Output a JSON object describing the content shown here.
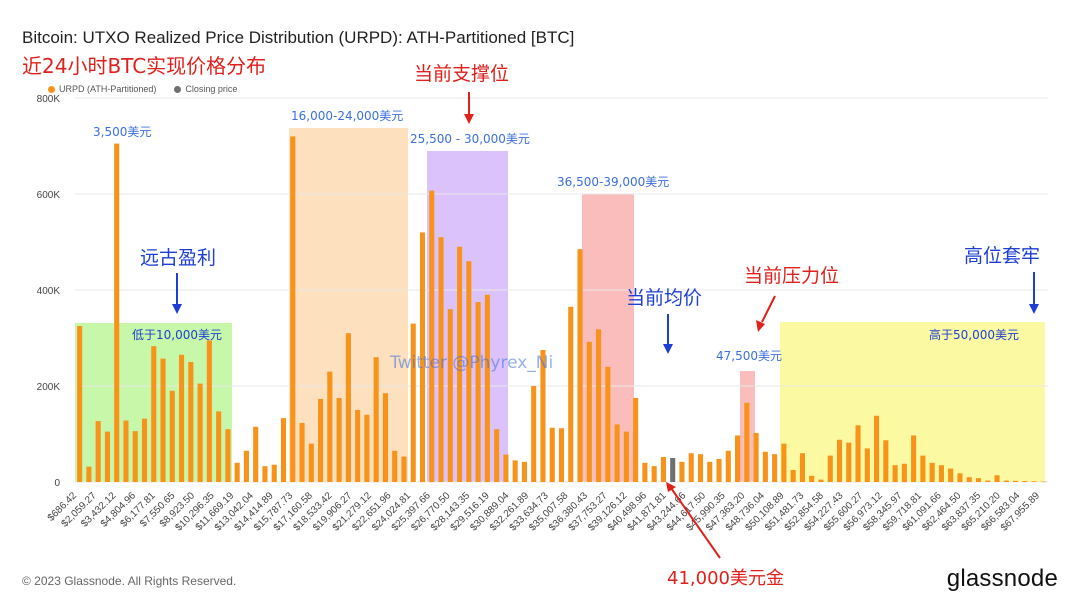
{
  "header": {
    "title": "Bitcoin: UTXO Realized Price Distribution (URPD): ATH-Partitioned [BTC]",
    "subtitle": "近24小时BTC实现价格分布"
  },
  "legend": {
    "series_label": "URPD (ATH-Partitioned)",
    "closing_label": "Closing price",
    "series_color": "#f7931a",
    "closing_color": "#707070"
  },
  "footer": {
    "copyright": "© 2023 Glassnode. All Rights Reserved.",
    "brand": "glassnode"
  },
  "annotations": {
    "watermark": "Twitter @Phyrex_Ni",
    "ancient_profit": "远古盈利",
    "below_10k": "低于10,000美元",
    "price_3500": "3,500美元",
    "range_16_24k": "16,000-24,000美元",
    "current_support": "当前支撑位",
    "range_25_30k": "25,500 - 30,000美元",
    "range_36_39k": "36,500-39,000美元",
    "current_avg": "当前均价",
    "current_pressure": "当前压力位",
    "price_47500": "47,500美元",
    "high_trapped": "高位套牢",
    "above_50k": "高于50,000美元",
    "price_41000": "41,000美元金"
  },
  "chart_data": {
    "type": "bar",
    "title": "Bitcoin: UTXO Realized Price Distribution (URPD): ATH-Partitioned [BTC]",
    "ylim": [
      0,
      800000
    ],
    "yticks": [
      "0",
      "200K",
      "400K",
      "600K",
      "800K"
    ],
    "grid": true,
    "legend_position": "top-left",
    "xtick_labels": [
      "$686.42",
      "$2,059.27",
      "$3,432.12",
      "$4,804.96",
      "$6,177.81",
      "$7,550.65",
      "$8,923.50",
      "$10,296.35",
      "$11,669.19",
      "$13,042.04",
      "$14,414.89",
      "$15,787.73",
      "$17,160.58",
      "$18,533.42",
      "$19,906.27",
      "$21,279.12",
      "$22,651.96",
      "$24,024.81",
      "$25,397.66",
      "$26,770.50",
      "$28,143.35",
      "$29,516.19",
      "$30,889.04",
      "$32,261.89",
      "$33,634.73",
      "$35,007.58",
      "$36,380.43",
      "$37,753.27",
      "$39,126.12",
      "$40,498.96",
      "$41,871.81",
      "$43,244.66",
      "$44,617.50",
      "$45,990.35",
      "$47,363.20",
      "$48,736.04",
      "$50,108.89",
      "$51,481.73",
      "$52,854.58",
      "$54,227.43",
      "$55,600.27",
      "$56,973.12",
      "$58,345.97",
      "$59,718.81",
      "$61,091.66",
      "$62,464.50",
      "$63,837.35",
      "$65,210.20",
      "$66,583.04",
      "$67,955.89"
    ],
    "closing_price_index": 64,
    "values": [
      325000,
      32000,
      127000,
      105000,
      705000,
      128000,
      106000,
      132000,
      283000,
      257000,
      190000,
      265000,
      250000,
      205000,
      295000,
      147000,
      110000,
      40000,
      65000,
      115000,
      33000,
      36000,
      133000,
      720000,
      123000,
      80000,
      173000,
      230000,
      175000,
      310000,
      150000,
      140000,
      260000,
      185000,
      65000,
      53000,
      330000,
      520000,
      607000,
      510000,
      360000,
      490000,
      460000,
      375000,
      390000,
      110000,
      57000,
      45000,
      42000,
      200000,
      275000,
      113000,
      112000,
      365000,
      485000,
      292000,
      318000,
      240000,
      120000,
      105000,
      175000,
      40000,
      33000,
      52000,
      50000,
      42000,
      60000,
      58000,
      42000,
      48000,
      65000,
      97000,
      165000,
      102000,
      63000,
      58000,
      80000,
      25000,
      60000,
      13000,
      5000,
      55000,
      88000,
      82000,
      118000,
      70000,
      138000,
      87000,
      35000,
      38000,
      97000,
      55000,
      40000,
      35000,
      28000,
      18000,
      10000,
      8000,
      3000,
      14000,
      3000,
      2500,
      2000,
      1500,
      1000
    ]
  }
}
